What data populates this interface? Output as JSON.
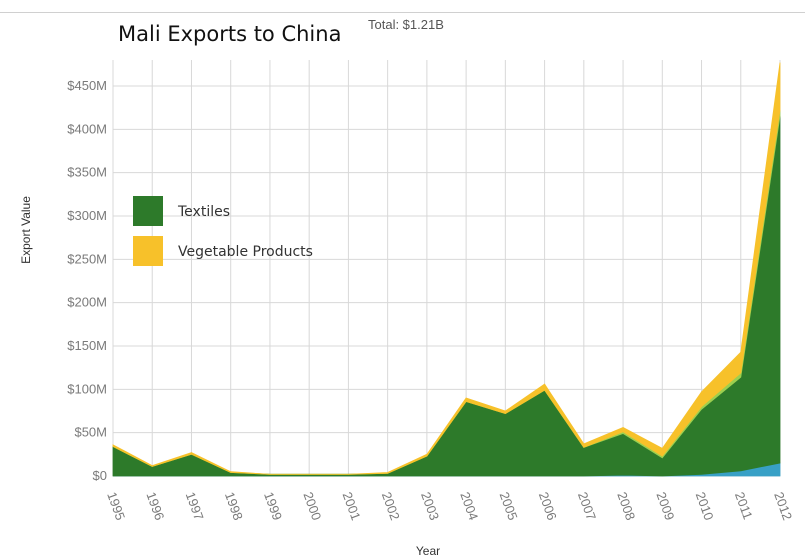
{
  "chart_data": {
    "type": "area",
    "stacked": true,
    "title": "Mali Exports to China",
    "subtitle": "Total: $1.21B",
    "xlabel": "Year",
    "ylabel": "Export Value",
    "x": [
      "1995",
      "1996",
      "1997",
      "1998",
      "1999",
      "2000",
      "2001",
      "2002",
      "2003",
      "2004",
      "2005",
      "2006",
      "2007",
      "2008",
      "2009",
      "2010",
      "2011",
      "2012"
    ],
    "ylim": [
      0,
      480
    ],
    "y_ticks": [
      {
        "value": 0,
        "label": "$0"
      },
      {
        "value": 50,
        "label": "$50M"
      },
      {
        "value": 100,
        "label": "$100M"
      },
      {
        "value": 150,
        "label": "$150M"
      },
      {
        "value": 200,
        "label": "$200M"
      },
      {
        "value": 250,
        "label": "$250M"
      },
      {
        "value": 300,
        "label": "$300M"
      },
      {
        "value": 350,
        "label": "$350M"
      },
      {
        "value": 400,
        "label": "$400M"
      },
      {
        "value": 450,
        "label": "$450M"
      }
    ],
    "grid": true,
    "legend_position": "left",
    "series": [
      {
        "values": [
          0,
          0,
          0,
          0,
          0,
          0,
          0,
          0,
          0,
          0,
          0,
          0,
          0,
          0,
          0,
          0,
          0,
          0
        ],
        "color": "#e4e4e4"
      },
      {
        "values": [
          0,
          0,
          0,
          0,
          0,
          0,
          0,
          0,
          0,
          0,
          0,
          0,
          0,
          1,
          0,
          2,
          6,
          15
        ],
        "color": "#38a0c6"
      },
      {
        "name": "Textiles",
        "values": [
          34,
          11,
          25,
          4,
          2,
          2,
          2,
          3,
          23,
          86,
          72,
          99,
          33,
          48,
          21,
          75,
          108,
          400
        ],
        "color": "#2d7a2a"
      },
      {
        "values": [
          0,
          0,
          0,
          0,
          0,
          0,
          0,
          0,
          0,
          0,
          0,
          0,
          0,
          2,
          2,
          3,
          5,
          7
        ],
        "color": "#9ccf4f"
      },
      {
        "name": "Vegetable Products",
        "values": [
          2,
          1,
          2,
          1,
          0,
          0,
          0,
          1,
          2,
          4,
          3,
          7,
          4,
          5,
          9,
          17,
          24,
          55
        ],
        "color": "#f7c12a"
      }
    ]
  }
}
